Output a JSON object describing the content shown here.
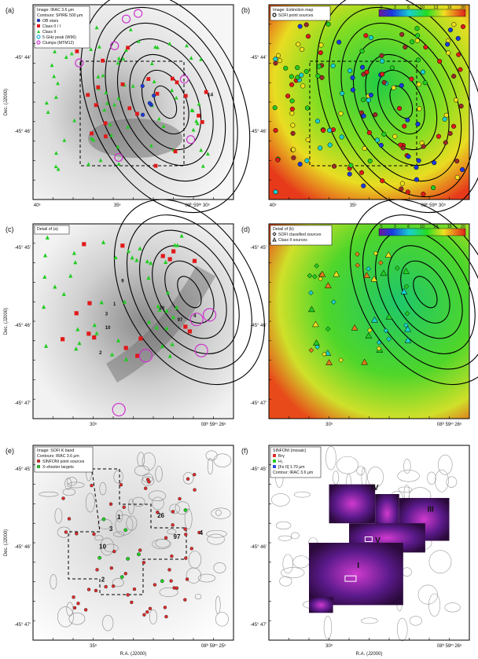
{
  "figure": {
    "panels": [
      {
        "id": "a",
        "letter": "(a)",
        "legend_lines": [
          "Image: IRAC 3.6 μm",
          "Contours: SPIRE 500 μm"
        ],
        "legend_items": [
          {
            "label": "OB stars",
            "marker": "circle",
            "color": "#1a3ad6"
          },
          {
            "label": "Class 0 / I",
            "marker": "square",
            "color": "#e01a1a"
          },
          {
            "label": "Class II",
            "marker": "triangle",
            "color": "#22cc22"
          },
          {
            "label": "5 GHz peak (W96)",
            "marker": "circle-open",
            "color": "#22b0e0"
          },
          {
            "label": "Clumps (MTM12)",
            "marker": "circle-open",
            "color": "#cc33cc"
          }
        ],
        "yticks": [
          "-45° 44'",
          "-45° 46'"
        ],
        "xticks": [
          "40ˢ",
          "35ˢ",
          "08ʰ 59ᵐ 30ˢ"
        ],
        "ylabel": "Dec. (J2000)",
        "xlabel": "",
        "labels": [
          "14"
        ]
      },
      {
        "id": "b",
        "letter": "(b)",
        "legend_lines": [
          "Image: Extinction map"
        ],
        "legend_items": [
          {
            "label": "SOFI point sources",
            "marker": "circle-open",
            "color": "#111111"
          }
        ],
        "colorbar_ticks": [
          "0",
          "3",
          "6",
          "10",
          "13",
          "16",
          "20"
        ],
        "yticks": [
          "-45° 44'",
          "-45° 46'"
        ],
        "xticks": [
          "40ˢ",
          "35ˢ",
          "08ʰ 59ᵐ 30ˢ"
        ]
      },
      {
        "id": "c",
        "letter": "(c)",
        "legend_lines": [
          "Detail of (a)"
        ],
        "yticks": [
          "-45° 45'",
          "-45° 46'",
          "-45° 47'"
        ],
        "xticks": [
          "30ˢ",
          "08ʰ 59ᵐ 26ˢ"
        ],
        "ylabel": "Dec. (J2000)",
        "labels": [
          "1",
          "3",
          "10",
          "2",
          "26",
          "97",
          "4",
          "9"
        ]
      },
      {
        "id": "d",
        "letter": "(d)",
        "legend_lines": [
          "Detail of (b)"
        ],
        "legend_items": [
          {
            "label": "SOFI classified sources",
            "marker": "diamond",
            "color": "#111111"
          },
          {
            "label": "Class II sources",
            "marker": "triangle-open",
            "color": "#111111"
          }
        ],
        "colorbar_ticks": [
          "0",
          "3",
          "6",
          "10",
          "13",
          "16",
          "20"
        ],
        "yticks": [
          "-45° 45'",
          "-45° 46'",
          "-45° 47'"
        ],
        "xticks": [
          "30ˢ",
          "08ʰ 59ᵐ 26ˢ"
        ]
      },
      {
        "id": "e",
        "letter": "(e)",
        "legend_lines": [
          "Image: SOFI K band",
          "Contours: IRAC 3.6 μm"
        ],
        "legend_items": [
          {
            "label": "SINFONI point sources",
            "marker": "circle",
            "color": "#e02a2a"
          },
          {
            "label": "X-shooter targets",
            "marker": "circle",
            "color": "#22cc22"
          }
        ],
        "yticks": [
          "-45° 45'",
          "-45° 46'",
          "-45° 47'"
        ],
        "xticks": [
          "35ˢ",
          "08ʰ 59ᵐ 25ˢ"
        ],
        "ylabel": "Dec. (J2000)",
        "xlabel": "R.A. (J2000)",
        "labels": [
          "1",
          "3",
          "10",
          "2",
          "26",
          "97",
          "4"
        ]
      },
      {
        "id": "f",
        "letter": "(f)",
        "legend_lines": [
          "SINFONI (mosaic)"
        ],
        "legend_items": [
          {
            "label": "Brγ",
            "marker": "square",
            "color": "#e02a2a"
          },
          {
            "label": "H₂",
            "marker": "square",
            "color": "#22cc22"
          },
          {
            "label": "[Fe II] 1.70 μm",
            "marker": "square",
            "color": "#2a4ae0"
          }
        ],
        "legend_tail": "Contour: IRAC 3.6 μm",
        "yticks": [
          "-45° 45'",
          "-45° 46'",
          "-45° 47'"
        ],
        "xticks": [
          "30ˢ",
          "08ʰ 59ᵐ 26ˢ"
        ],
        "xlabel": "R.A. (J2000)",
        "labels": [
          "IV",
          "III",
          "V",
          "I"
        ]
      }
    ]
  }
}
